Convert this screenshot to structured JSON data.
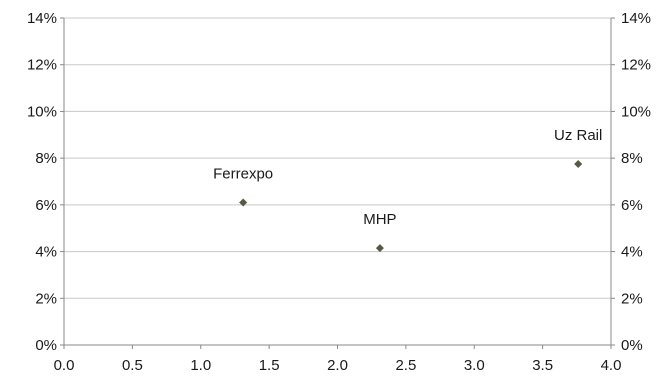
{
  "chart_data": {
    "type": "scatter",
    "title": "",
    "xlabel": "",
    "ylabel": "",
    "xlim": [
      0.0,
      4.0
    ],
    "ylim": [
      0,
      14
    ],
    "x_ticks": [
      "0.0",
      "0.5",
      "1.0",
      "1.5",
      "2.0",
      "2.5",
      "3.0",
      "3.5",
      "4.0"
    ],
    "y_ticks": [
      "0%",
      "2%",
      "4%",
      "6%",
      "8%",
      "10%",
      "12%",
      "14%"
    ],
    "y2_ticks": [
      "0%",
      "2%",
      "4%",
      "6%",
      "8%",
      "10%",
      "12%",
      "14%"
    ],
    "grid": "horizontal",
    "legend": "none",
    "marker_color": "#555a45",
    "points": [
      {
        "label": "Ferrexpo",
        "x": 1.31,
        "y": 6.1
      },
      {
        "label": "MHP",
        "x": 2.31,
        "y": 4.15
      },
      {
        "label": "Uz Rail",
        "x": 3.76,
        "y": 7.75
      }
    ]
  }
}
